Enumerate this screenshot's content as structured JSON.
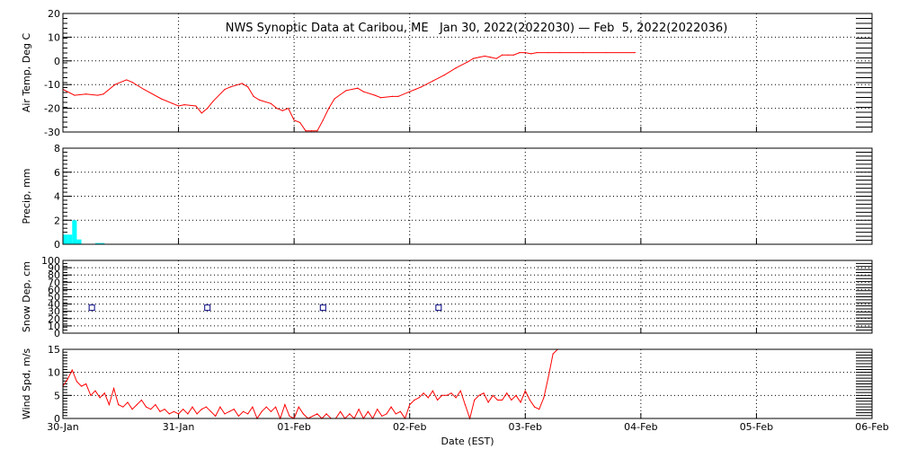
{
  "chart_data": {
    "title": "NWS Synoptic Data at Caribou, ME   Jan 30, 2022(2022030) — Feb  5, 2022(2022036)",
    "xlabel": "Date (EST)",
    "x_tick_labels": [
      "30-Jan",
      "31-Jan",
      "01-Feb",
      "02-Feb",
      "03-Feb",
      "04-Feb",
      "05-Feb",
      "06-Feb"
    ],
    "xlim_days": [
      0,
      7
    ],
    "grid": true,
    "colors": {
      "temp": "#ff0000",
      "precip": "#00ffff",
      "snow": "#000080",
      "wind": "#ff0000",
      "axes": "#000000",
      "grid": "#000000"
    },
    "panels": [
      {
        "id": "temp",
        "type": "line",
        "ylabel": "Air Temp, Deg C",
        "ylim": [
          -30,
          20
        ],
        "yticks": [
          -30,
          -20,
          -10,
          0,
          10,
          20
        ],
        "x": [
          0,
          0.1,
          0.2,
          0.3,
          0.35,
          0.45,
          0.55,
          0.6,
          0.7,
          0.85,
          0.95,
          1.0,
          1.05,
          1.15,
          1.2,
          1.25,
          1.3,
          1.4,
          1.45,
          1.55,
          1.6,
          1.65,
          1.7,
          1.8,
          1.85,
          1.9,
          1.95,
          2.0,
          2.05,
          2.1,
          2.15,
          2.2,
          2.25,
          2.3,
          2.35,
          2.45,
          2.55,
          2.6,
          2.7,
          2.75,
          2.85,
          2.9,
          3.0,
          3.05,
          3.1,
          3.2,
          3.3,
          3.4,
          3.5,
          3.55,
          3.6,
          3.65,
          3.7,
          3.75,
          3.8,
          3.85,
          3.9,
          3.95,
          4.0,
          4.05,
          4.1,
          4.2,
          4.3,
          4.5,
          4.7,
          4.95
        ],
        "values": [
          -12,
          -14.5,
          -14,
          -14.5,
          -14,
          -10,
          -8,
          -9,
          -12,
          -16,
          -18,
          -19,
          -18.5,
          -19,
          -22,
          -20,
          -17,
          -12,
          -11,
          -9.5,
          -11,
          -15,
          -16.5,
          -18,
          -20,
          -21,
          -20,
          -25,
          -26,
          -29.5,
          -29.5,
          -29.5,
          -25,
          -20,
          -16,
          -12.5,
          -11.5,
          -13,
          -14.5,
          -15.5,
          -15,
          -15,
          -13,
          -12,
          -11,
          -8.5,
          -6,
          -3,
          -0.5,
          1,
          1.5,
          2,
          1.5,
          1,
          2.5,
          2.5,
          2.5,
          3.5,
          3.5,
          3,
          3.5,
          3.5,
          3.5,
          3.5,
          3.5,
          3.5
        ]
      },
      {
        "id": "precip",
        "type": "bar",
        "ylabel": "Precip, mm",
        "ylim": [
          0,
          8
        ],
        "yticks": [
          0,
          2,
          4,
          6,
          8
        ],
        "x": [
          0,
          0.04,
          0.08,
          0.12,
          0.28,
          0.32
        ],
        "values": [
          0.8,
          0.8,
          2.0,
          0.4,
          0.1,
          0.1
        ]
      },
      {
        "id": "snow",
        "type": "scatter",
        "ylabel": "Snow Dep, cm",
        "ylim": [
          0,
          100
        ],
        "yticks": [
          0,
          10,
          20,
          30,
          40,
          50,
          60,
          70,
          80,
          90,
          100
        ],
        "x": [
          0.25,
          1.25,
          2.25,
          3.25
        ],
        "values": [
          35,
          35,
          35,
          35
        ]
      },
      {
        "id": "wind",
        "type": "line",
        "ylabel": "Wind Spd, m/s",
        "ylim": [
          0,
          15
        ],
        "yticks": [
          0,
          5,
          10,
          15
        ],
        "x": [
          0,
          0.04,
          0.08,
          0.12,
          0.16,
          0.2,
          0.24,
          0.28,
          0.32,
          0.36,
          0.4,
          0.44,
          0.48,
          0.52,
          0.56,
          0.6,
          0.64,
          0.68,
          0.72,
          0.76,
          0.8,
          0.84,
          0.88,
          0.92,
          0.96,
          1.0,
          1.04,
          1.08,
          1.12,
          1.16,
          1.2,
          1.24,
          1.28,
          1.32,
          1.36,
          1.4,
          1.44,
          1.48,
          1.52,
          1.56,
          1.6,
          1.64,
          1.68,
          1.72,
          1.76,
          1.8,
          1.84,
          1.88,
          1.92,
          1.96,
          2.0,
          2.04,
          2.08,
          2.12,
          2.16,
          2.2,
          2.24,
          2.28,
          2.32,
          2.36,
          2.4,
          2.44,
          2.48,
          2.52,
          2.56,
          2.6,
          2.64,
          2.68,
          2.72,
          2.76,
          2.8,
          2.84,
          2.88,
          2.92,
          2.96,
          3.0,
          3.04,
          3.08,
          3.12,
          3.16,
          3.2,
          3.24,
          3.28,
          3.32,
          3.36,
          3.4,
          3.44,
          3.48,
          3.52,
          3.56,
          3.6,
          3.64,
          3.68,
          3.72,
          3.76,
          3.8,
          3.84,
          3.88,
          3.92,
          3.96,
          4.0,
          4.04,
          4.08,
          4.12,
          4.16,
          4.2,
          4.24,
          4.28
        ],
        "values": [
          7,
          8.5,
          10.5,
          8,
          7,
          7.5,
          5,
          6,
          4.5,
          5.5,
          3,
          6.5,
          3,
          2.5,
          3.5,
          2,
          3,
          4,
          2.5,
          2,
          3,
          1.5,
          2,
          1,
          1.5,
          1,
          2,
          1,
          2.5,
          1,
          2,
          2.5,
          1.5,
          0.5,
          2.5,
          1,
          1.5,
          2,
          0.5,
          1.5,
          1,
          2.5,
          0,
          1.5,
          2.5,
          1.5,
          2.5,
          0,
          3,
          0.5,
          0,
          2.5,
          1,
          0,
          0.5,
          1,
          0,
          1,
          0,
          0,
          1.5,
          0,
          1,
          0,
          2,
          0,
          1.5,
          0,
          2,
          0.5,
          1,
          2.5,
          1,
          1.5,
          0,
          3,
          4,
          4.5,
          5.5,
          4.5,
          6,
          4,
          5,
          5,
          5.5,
          4.5,
          6,
          3,
          0,
          4,
          5,
          5.5,
          3.5,
          5,
          4,
          4,
          5.5,
          4,
          5,
          3.5,
          6,
          4,
          2.5,
          2,
          4.5,
          9,
          14,
          15
        ]
      }
    ]
  }
}
